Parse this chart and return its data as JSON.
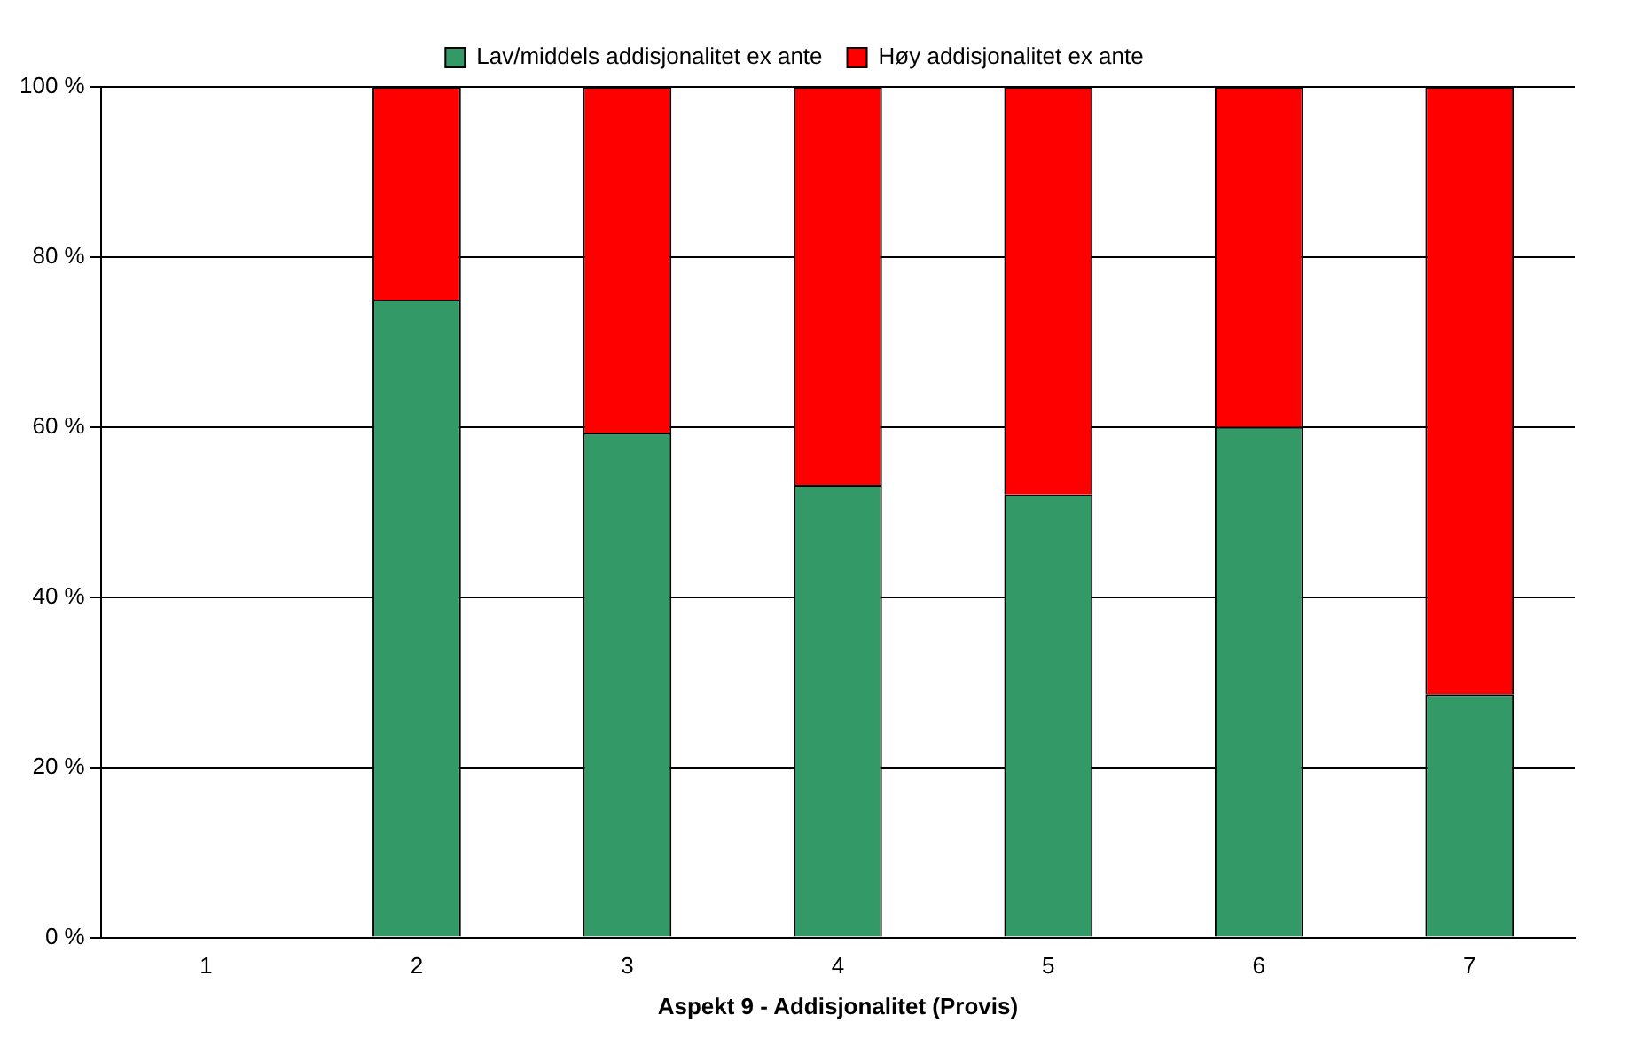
{
  "chart_data": {
    "type": "bar",
    "stacked": true,
    "xlabel": "Aspekt 9 - Addisjonalitet (Provis)",
    "categories": [
      "1",
      "2",
      "3",
      "4",
      "5",
      "6",
      "7"
    ],
    "series": [
      {
        "name": "Lav/middels addisjonalitet ex ante",
        "color": "#339966",
        "values": [
          null,
          75,
          59.3,
          53.2,
          52.1,
          60,
          28.6
        ]
      },
      {
        "name": "Høy addisjonalitet ex ante",
        "color": "#ff0000",
        "values": [
          null,
          25,
          40.7,
          46.8,
          47.9,
          40,
          71.4
        ]
      }
    ],
    "ylim": [
      0,
      100
    ],
    "yticks": [
      {
        "value": 0,
        "label": "0 %"
      },
      {
        "value": 20,
        "label": "20 %"
      },
      {
        "value": 40,
        "label": "40 %"
      },
      {
        "value": 60,
        "label": "60 %"
      },
      {
        "value": 80,
        "label": "80 %"
      },
      {
        "value": 100,
        "label": "100 %"
      }
    ],
    "grid": "y",
    "legend": "top"
  }
}
